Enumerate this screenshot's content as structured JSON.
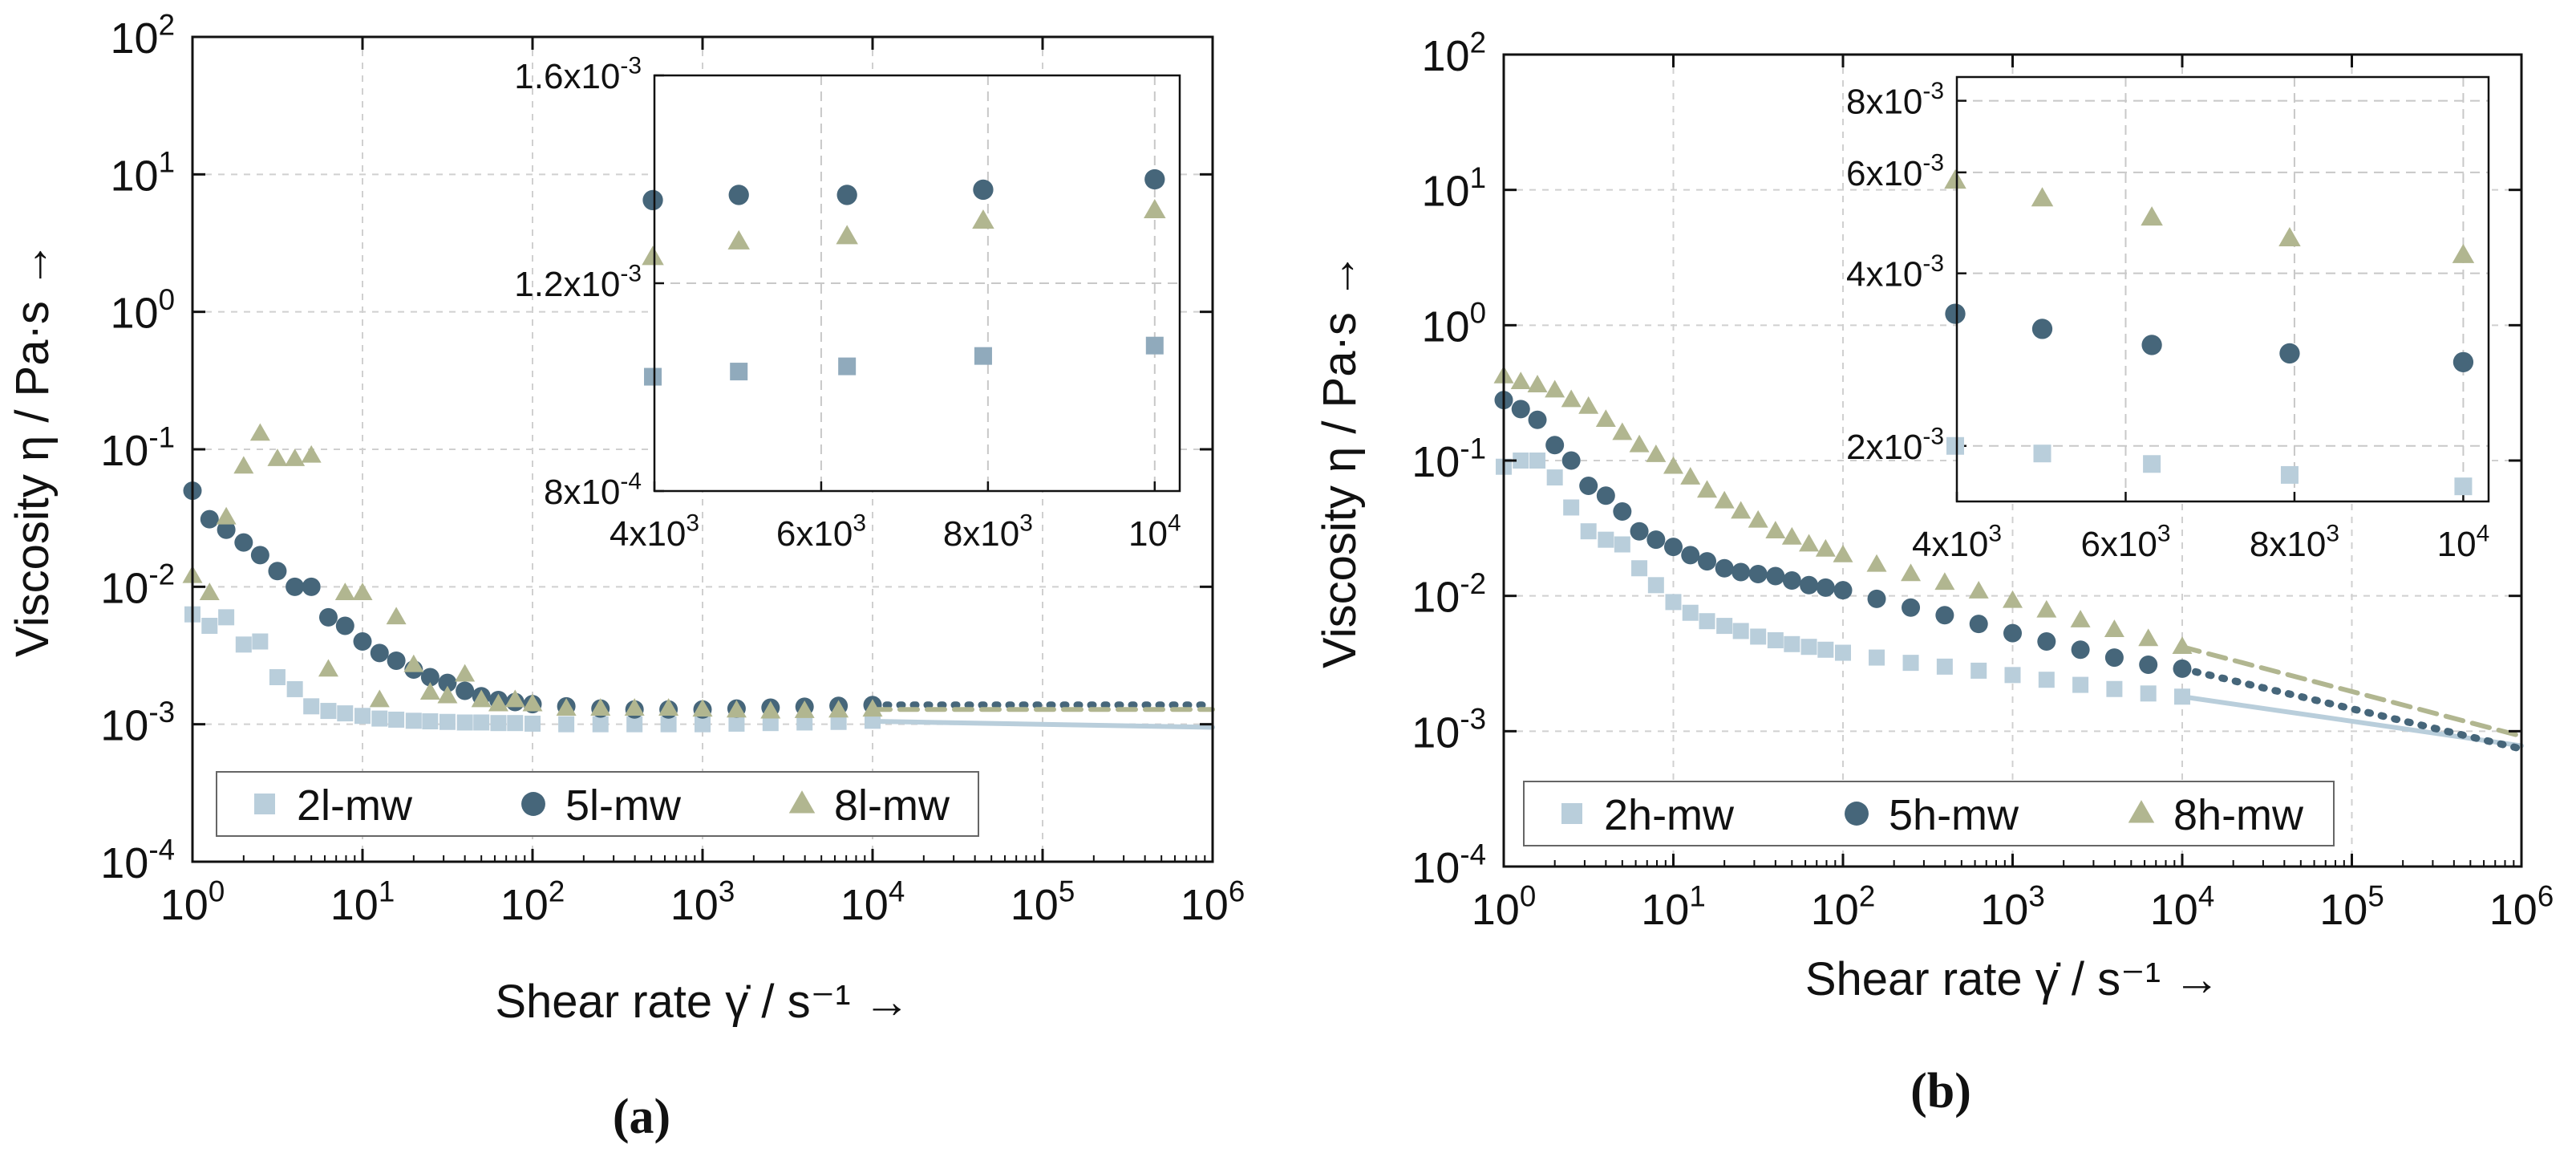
{
  "colors": {
    "s2": "#b9cedb",
    "s5": "#46667a",
    "s8": "#b1b690",
    "s2_inset": "#90aabc",
    "grid": "#d0d0d0",
    "axis": "#111111"
  },
  "chart_data": [
    {
      "panel_label": "(a)",
      "type": "scatter",
      "xscale": "log",
      "yscale": "log",
      "xlim": [
        1,
        1000000
      ],
      "ylim": [
        0.0001,
        100
      ],
      "xlabel": "Shear rate γ̇ / s⁻¹ →",
      "ylabel": "Viscosity η / Pa·s →",
      "x_ticks": [
        1,
        10,
        100,
        1000,
        10000,
        100000,
        1000000
      ],
      "x_tick_labels": [
        [
          "10",
          "0"
        ],
        [
          "10",
          "1"
        ],
        [
          "10",
          "2"
        ],
        [
          "10",
          "3"
        ],
        [
          "10",
          "4"
        ],
        [
          "10",
          "5"
        ],
        [
          "10",
          "6"
        ]
      ],
      "y_ticks": [
        0.0001,
        0.001,
        0.01,
        0.1,
        1,
        10,
        100
      ],
      "y_tick_labels": [
        [
          "10",
          "-4"
        ],
        [
          "10",
          "-3"
        ],
        [
          "10",
          "-2"
        ],
        [
          "10",
          "-1"
        ],
        [
          "10",
          "0"
        ],
        [
          "10",
          "1"
        ],
        [
          "10",
          "2"
        ]
      ],
      "legend": [
        "2l-mw",
        "5l-mw",
        "8l-mw"
      ],
      "legend_position": "lower-left",
      "series": [
        {
          "name": "2l-mw",
          "marker": "square",
          "color": "#b9cedb",
          "fit_style": "solid",
          "x": [
            1,
            1.26,
            1.58,
            2.0,
            2.5,
            3.16,
            4.0,
            5.0,
            6.3,
            7.9,
            10,
            12.6,
            15.8,
            20,
            25,
            31.6,
            40,
            50,
            63,
            79,
            100,
            158,
            251,
            398,
            631,
            1000,
            1585,
            2512,
            3981,
            6310,
            10000
          ],
          "y": [
            0.0063,
            0.0052,
            0.006,
            0.0038,
            0.004,
            0.0022,
            0.0018,
            0.00135,
            0.00125,
            0.0012,
            0.00115,
            0.0011,
            0.00108,
            0.00106,
            0.00105,
            0.00104,
            0.00103,
            0.00103,
            0.00102,
            0.00102,
            0.00101,
            0.001,
            0.001,
            0.001,
            0.001,
            0.001,
            0.00101,
            0.00102,
            0.00103,
            0.00104,
            0.00106
          ],
          "fit": {
            "x": [
              10000,
              1000000
            ],
            "y": [
              0.00105,
              0.00095
            ]
          }
        },
        {
          "name": "5l-mw",
          "marker": "circle",
          "color": "#46667a",
          "fit_style": "dotted",
          "x": [
            1,
            1.26,
            1.58,
            2.0,
            2.5,
            3.16,
            4.0,
            5.0,
            6.3,
            7.9,
            10,
            12.6,
            15.8,
            20,
            25,
            31.6,
            40,
            50,
            63,
            79,
            100,
            158,
            251,
            398,
            631,
            1000,
            1585,
            2512,
            3981,
            6310,
            10000
          ],
          "y": [
            0.05,
            0.031,
            0.026,
            0.021,
            0.017,
            0.013,
            0.01,
            0.01,
            0.006,
            0.0052,
            0.004,
            0.0033,
            0.0029,
            0.0025,
            0.0022,
            0.002,
            0.00175,
            0.0016,
            0.0015,
            0.00145,
            0.0014,
            0.00135,
            0.0013,
            0.00128,
            0.00128,
            0.00128,
            0.0013,
            0.00132,
            0.00134,
            0.00136,
            0.00138
          ],
          "fit": {
            "x": [
              10000,
              1000000
            ],
            "y": [
              0.00138,
              0.00138
            ]
          }
        },
        {
          "name": "8l-mw",
          "marker": "triangle",
          "color": "#b1b690",
          "fit_style": "dashed",
          "x": [
            1,
            1.26,
            1.58,
            2.0,
            2.5,
            3.16,
            4.0,
            5.0,
            6.3,
            7.9,
            10,
            12.6,
            15.8,
            20,
            25,
            31.6,
            40,
            50,
            63,
            79,
            100,
            158,
            251,
            398,
            631,
            1000,
            1585,
            2512,
            3981,
            6310,
            10000
          ],
          "y": [
            0.012,
            0.009,
            0.032,
            0.075,
            0.13,
            0.085,
            0.085,
            0.09,
            0.0025,
            0.009,
            0.009,
            0.0015,
            0.006,
            0.0027,
            0.0017,
            0.0016,
            0.0023,
            0.0015,
            0.0014,
            0.0015,
            0.0014,
            0.0013,
            0.0013,
            0.0013,
            0.0013,
            0.00128,
            0.00126,
            0.00124,
            0.00125,
            0.00126,
            0.00128
          ],
          "fit": {
            "x": [
              10000,
              1000000
            ],
            "y": [
              0.00128,
              0.00128
            ]
          }
        }
      ],
      "inset": {
        "xscale": "linear",
        "yscale": "linear",
        "xlim": [
          4000,
          10300
        ],
        "ylim": [
          0.0008,
          0.0016
        ],
        "x_ticks": [
          4000,
          6000,
          8000,
          10000
        ],
        "x_tick_labels": [
          [
            "4x10",
            "3"
          ],
          [
            "6x10",
            "3"
          ],
          [
            "8x10",
            "3"
          ],
          [
            "10",
            "4"
          ]
        ],
        "y_ticks": [
          0.0008,
          0.0012,
          0.0016
        ],
        "y_tick_labels": [
          [
            "8x10",
            "-4"
          ],
          [
            "1.2x10",
            "-3"
          ],
          [
            "1.6x10",
            "-3"
          ]
        ],
        "series": [
          {
            "name": "2l-mw",
            "marker": "square",
            "color": "#90aabc",
            "x": [
              3981,
              5012,
              6310,
              7943,
              10000
            ],
            "y": [
              0.00102,
              0.00103,
              0.00104,
              0.00106,
              0.00108
            ]
          },
          {
            "name": "5l-mw",
            "marker": "circle",
            "color": "#46667a",
            "x": [
              3981,
              5012,
              6310,
              7943,
              10000
            ],
            "y": [
              0.00136,
              0.00137,
              0.00137,
              0.00138,
              0.0014
            ]
          },
          {
            "name": "8l-mw",
            "marker": "triangle",
            "color": "#b1b690",
            "x": [
              3981,
              5012,
              6310,
              7943,
              10000
            ],
            "y": [
              0.00125,
              0.00128,
              0.00129,
              0.00132,
              0.00134
            ]
          }
        ]
      }
    },
    {
      "panel_label": "(b)",
      "type": "scatter",
      "xscale": "log",
      "yscale": "log",
      "xlim": [
        1,
        1000000
      ],
      "ylim": [
        0.0001,
        100
      ],
      "xlabel": "Shear rate γ̇ / s⁻¹ →",
      "ylabel": "Viscosity η / Pa·s →",
      "x_ticks": [
        1,
        10,
        100,
        1000,
        10000,
        100000,
        1000000
      ],
      "x_tick_labels": [
        [
          "10",
          "0"
        ],
        [
          "10",
          "1"
        ],
        [
          "10",
          "2"
        ],
        [
          "10",
          "3"
        ],
        [
          "10",
          "4"
        ],
        [
          "10",
          "5"
        ],
        [
          "10",
          "6"
        ]
      ],
      "y_ticks": [
        0.0001,
        0.001,
        0.01,
        0.1,
        1,
        10,
        100
      ],
      "y_tick_labels": [
        [
          "10",
          "-4"
        ],
        [
          "10",
          "-3"
        ],
        [
          "10",
          "-2"
        ],
        [
          "10",
          "-1"
        ],
        [
          "10",
          "0"
        ],
        [
          "10",
          "1"
        ],
        [
          "10",
          "2"
        ]
      ],
      "legend": [
        "2h-mw",
        "5h-mw",
        "8h-mw"
      ],
      "legend_position": "lower-left",
      "series": [
        {
          "name": "2h-mw",
          "marker": "square",
          "color": "#b9cedb",
          "fit_style": "solid",
          "x": [
            1,
            1.26,
            1.58,
            2.0,
            2.5,
            3.16,
            4.0,
            5.0,
            6.3,
            7.9,
            10,
            12.6,
            15.8,
            20,
            25,
            31.6,
            40,
            50,
            63,
            79,
            100,
            158,
            251,
            398,
            631,
            1000,
            1585,
            2512,
            3981,
            6310,
            10000
          ],
          "y": [
            0.09,
            0.1,
            0.1,
            0.075,
            0.045,
            0.03,
            0.026,
            0.024,
            0.016,
            0.012,
            0.009,
            0.0075,
            0.0065,
            0.006,
            0.0055,
            0.005,
            0.0047,
            0.0044,
            0.0042,
            0.004,
            0.0038,
            0.0035,
            0.0032,
            0.003,
            0.0028,
            0.0026,
            0.0024,
            0.0022,
            0.00205,
            0.0019,
            0.0018
          ],
          "fit": {
            "x": [
              10000,
              1000000
            ],
            "y": [
              0.0018,
              0.00078
            ]
          }
        },
        {
          "name": "5h-mw",
          "marker": "circle",
          "color": "#46667a",
          "fit_style": "dotted",
          "x": [
            1,
            1.26,
            1.58,
            2.0,
            2.5,
            3.16,
            4.0,
            5.0,
            6.3,
            7.9,
            10,
            12.6,
            15.8,
            20,
            25,
            31.6,
            40,
            50,
            63,
            79,
            100,
            158,
            251,
            398,
            631,
            1000,
            1585,
            2512,
            3981,
            6310,
            10000
          ],
          "y": [
            0.28,
            0.24,
            0.2,
            0.13,
            0.1,
            0.065,
            0.055,
            0.042,
            0.03,
            0.026,
            0.023,
            0.02,
            0.018,
            0.016,
            0.015,
            0.0145,
            0.014,
            0.013,
            0.012,
            0.0115,
            0.011,
            0.0095,
            0.0082,
            0.0072,
            0.0062,
            0.0053,
            0.0046,
            0.004,
            0.0035,
            0.0031,
            0.0029
          ],
          "fit": {
            "x": [
              10000,
              1000000
            ],
            "y": [
              0.0029,
              0.00074
            ]
          }
        },
        {
          "name": "8h-mw",
          "marker": "triangle",
          "color": "#b1b690",
          "fit_style": "dashed",
          "x": [
            1,
            1.26,
            1.58,
            2.0,
            2.5,
            3.16,
            4.0,
            5.0,
            6.3,
            7.9,
            10,
            12.6,
            15.8,
            20,
            25,
            31.6,
            40,
            50,
            63,
            79,
            100,
            158,
            251,
            398,
            631,
            1000,
            1585,
            2512,
            3981,
            6310,
            10000
          ],
          "y": [
            0.42,
            0.38,
            0.36,
            0.33,
            0.28,
            0.25,
            0.2,
            0.16,
            0.13,
            0.11,
            0.09,
            0.075,
            0.06,
            0.05,
            0.042,
            0.036,
            0.03,
            0.027,
            0.024,
            0.022,
            0.02,
            0.017,
            0.0145,
            0.0125,
            0.0108,
            0.0092,
            0.0078,
            0.0066,
            0.0056,
            0.0048,
            0.0042
          ],
          "fit": {
            "x": [
              10000,
              1000000
            ],
            "y": [
              0.0042,
              0.00092
            ]
          }
        }
      ],
      "inset": {
        "xscale": "linear",
        "yscale": "log",
        "xlim": [
          4000,
          10300
        ],
        "ylim": [
          0.0016,
          0.0088
        ],
        "x_ticks": [
          4000,
          6000,
          8000,
          10000
        ],
        "x_tick_labels": [
          [
            "4x10",
            "3"
          ],
          [
            "6x10",
            "3"
          ],
          [
            "8x10",
            "3"
          ],
          [
            "10",
            "4"
          ]
        ],
        "y_ticks": [
          0.002,
          0.004,
          0.006,
          0.008
        ],
        "y_tick_labels": [
          [
            "2x10",
            "-3"
          ],
          [
            "4x10",
            "-3"
          ],
          [
            "6x10",
            "-3"
          ],
          [
            "8x10",
            "-3"
          ]
        ],
        "series": [
          {
            "name": "2h-mw",
            "marker": "square",
            "color": "#b9cedb",
            "x": [
              3981,
              5012,
              6310,
              7943,
              10000
            ],
            "y": [
              0.002,
              0.00194,
              0.00186,
              0.00178,
              0.0017
            ]
          },
          {
            "name": "5h-mw",
            "marker": "circle",
            "color": "#46667a",
            "x": [
              3981,
              5012,
              6310,
              7943,
              10000
            ],
            "y": [
              0.0034,
              0.0032,
              0.003,
              0.0029,
              0.0028
            ]
          },
          {
            "name": "8h-mw",
            "marker": "triangle",
            "color": "#b1b690",
            "x": [
              3981,
              5012,
              6310,
              7943,
              10000
            ],
            "y": [
              0.0058,
              0.0054,
              0.005,
              0.0046,
              0.0043
            ]
          }
        ]
      }
    }
  ]
}
